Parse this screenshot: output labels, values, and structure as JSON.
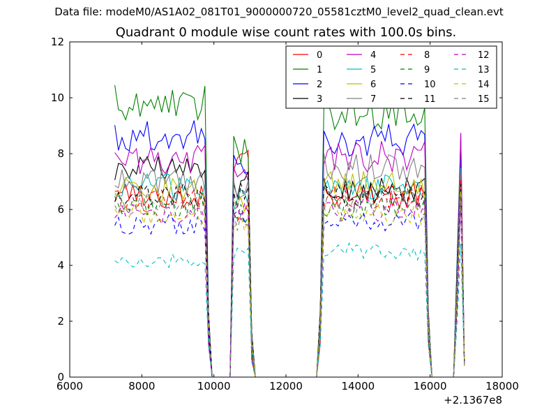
{
  "header": {
    "data_file": "Data file: modeM0/AS1A02_081T01_9000000720_05581cztM0_level2_quad_clean.evt"
  },
  "chart_data": {
    "type": "line",
    "title": "Quadrant 0 module wise count rates with 100.0s bins.",
    "xlabel": "",
    "ylabel": "",
    "x_offset_label": "+2.1367e8",
    "xlim": [
      6000,
      18000
    ],
    "ylim": [
      0,
      12
    ],
    "xticks": [
      6000,
      8000,
      10000,
      12000,
      14000,
      16000,
      18000
    ],
    "yticks": [
      0,
      2,
      4,
      6,
      8,
      10,
      12
    ],
    "legend": {
      "placement": "top-right",
      "columns": 4
    },
    "segments": [
      {
        "x_start": 7250,
        "x_end": 9750,
        "step": 100
      },
      {
        "x_start": 10550,
        "x_end": 10950,
        "step": 100
      },
      {
        "x_start": 13050,
        "x_end": 15850,
        "step": 100
      },
      {
        "x_start": 16850,
        "x_end": 16850,
        "step": 100
      }
    ],
    "gap_points": [
      [
        9850,
        2.0
      ],
      [
        9950,
        0.0
      ],
      [
        10450,
        0.0
      ],
      [
        11050,
        1.0
      ],
      [
        11150,
        0.0
      ],
      [
        12850,
        0.0
      ],
      [
        12950,
        2.0
      ],
      [
        15950,
        2.0
      ],
      [
        16050,
        0.0
      ],
      [
        16650,
        0.0
      ],
      [
        16750,
        4.0
      ],
      [
        16950,
        0.4
      ]
    ],
    "series": [
      {
        "name": "0",
        "color": "#ff0000",
        "dash": "solid",
        "levels": [
          6.5,
          7.8,
          6.5,
          8.0
        ]
      },
      {
        "name": "1",
        "color": "#008000",
        "dash": "solid",
        "levels": [
          9.9,
          8.2,
          9.5,
          8.3
        ]
      },
      {
        "name": "2",
        "color": "#0000ff",
        "dash": "solid",
        "levels": [
          8.6,
          7.8,
          8.5,
          8.0
        ]
      },
      {
        "name": "3",
        "color": "#000000",
        "dash": "solid",
        "levels": [
          7.4,
          6.9,
          6.7,
          7.0
        ]
      },
      {
        "name": "4",
        "color": "#bf00bf",
        "dash": "solid",
        "levels": [
          7.8,
          7.0,
          7.9,
          8.9
        ]
      },
      {
        "name": "5",
        "color": "#00bfbf",
        "dash": "solid",
        "levels": [
          6.8,
          6.3,
          6.8,
          7.2
        ]
      },
      {
        "name": "6",
        "color": "#bfbf00",
        "dash": "solid",
        "levels": [
          6.7,
          6.3,
          6.9,
          7.0
        ]
      },
      {
        "name": "7",
        "color": "#808080",
        "dash": "solid",
        "levels": [
          7.0,
          6.6,
          7.5,
          7.5
        ]
      },
      {
        "name": "8",
        "color": "#ff0000",
        "dash": "dashed",
        "levels": [
          6.3,
          6.0,
          6.5,
          7.0
        ]
      },
      {
        "name": "9",
        "color": "#008000",
        "dash": "dashed",
        "levels": [
          6.1,
          5.8,
          6.1,
          6.8
        ]
      },
      {
        "name": "10",
        "color": "#0000ff",
        "dash": "dashed",
        "levels": [
          5.5,
          5.6,
          5.5,
          6.5
        ]
      },
      {
        "name": "11",
        "color": "#000000",
        "dash": "dashed",
        "levels": [
          6.5,
          6.5,
          6.5,
          7.0
        ]
      },
      {
        "name": "12",
        "color": "#bf00bf",
        "dash": "dashed",
        "levels": [
          5.8,
          5.8,
          6.0,
          6.5
        ]
      },
      {
        "name": "13",
        "color": "#00bfbf",
        "dash": "dashed",
        "levels": [
          4.2,
          4.5,
          4.5,
          5.0
        ]
      },
      {
        "name": "14",
        "color": "#bfbf00",
        "dash": "dashed",
        "levels": [
          5.8,
          5.5,
          5.8,
          6.3
        ]
      },
      {
        "name": "15",
        "color": "#808080",
        "dash": "dashed",
        "levels": [
          6.2,
          5.6,
          6.3,
          6.5
        ]
      }
    ]
  }
}
